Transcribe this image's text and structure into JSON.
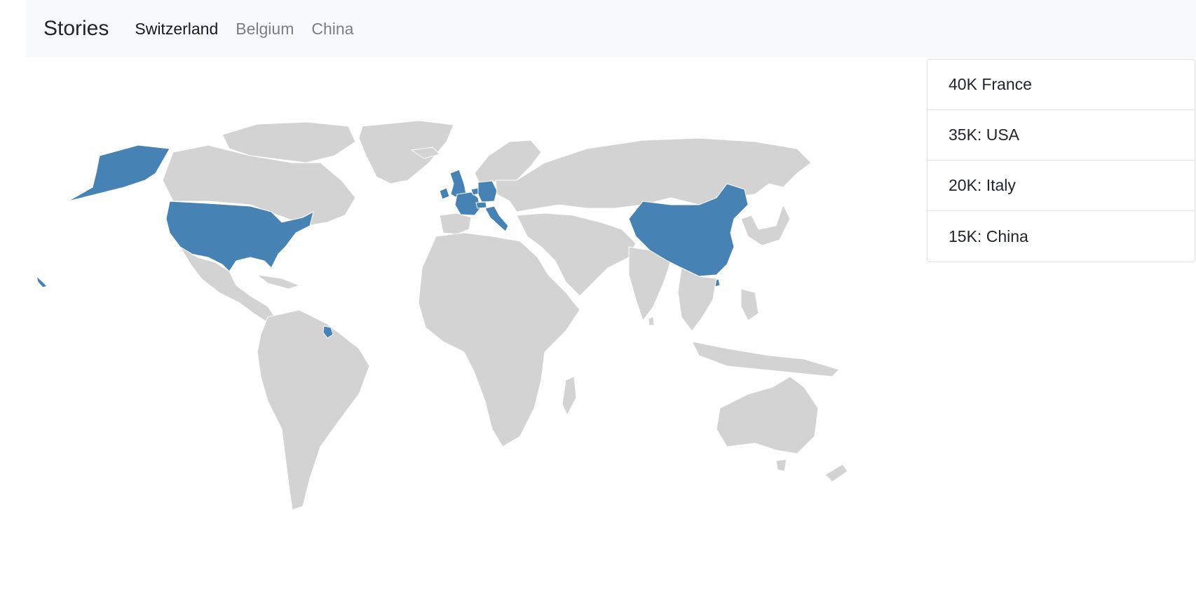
{
  "navbar": {
    "brand": "Stories",
    "links": [
      {
        "label": "Switzerland",
        "active": true
      },
      {
        "label": "Belgium",
        "active": false
      },
      {
        "label": "China",
        "active": false
      }
    ]
  },
  "map": {
    "land_color": "#d3d3d3",
    "highlight_color": "#4682b4",
    "highlighted_regions": [
      "Alaska",
      "United States",
      "Hawaii",
      "French Guiana",
      "United Kingdom",
      "Ireland",
      "France",
      "Germany",
      "Switzerland",
      "Belgium",
      "Italy",
      "China"
    ]
  },
  "stats": [
    {
      "label": "40K France"
    },
    {
      "label": "35K: USA"
    },
    {
      "label": "20K: Italy"
    },
    {
      "label": "15K: China"
    }
  ]
}
